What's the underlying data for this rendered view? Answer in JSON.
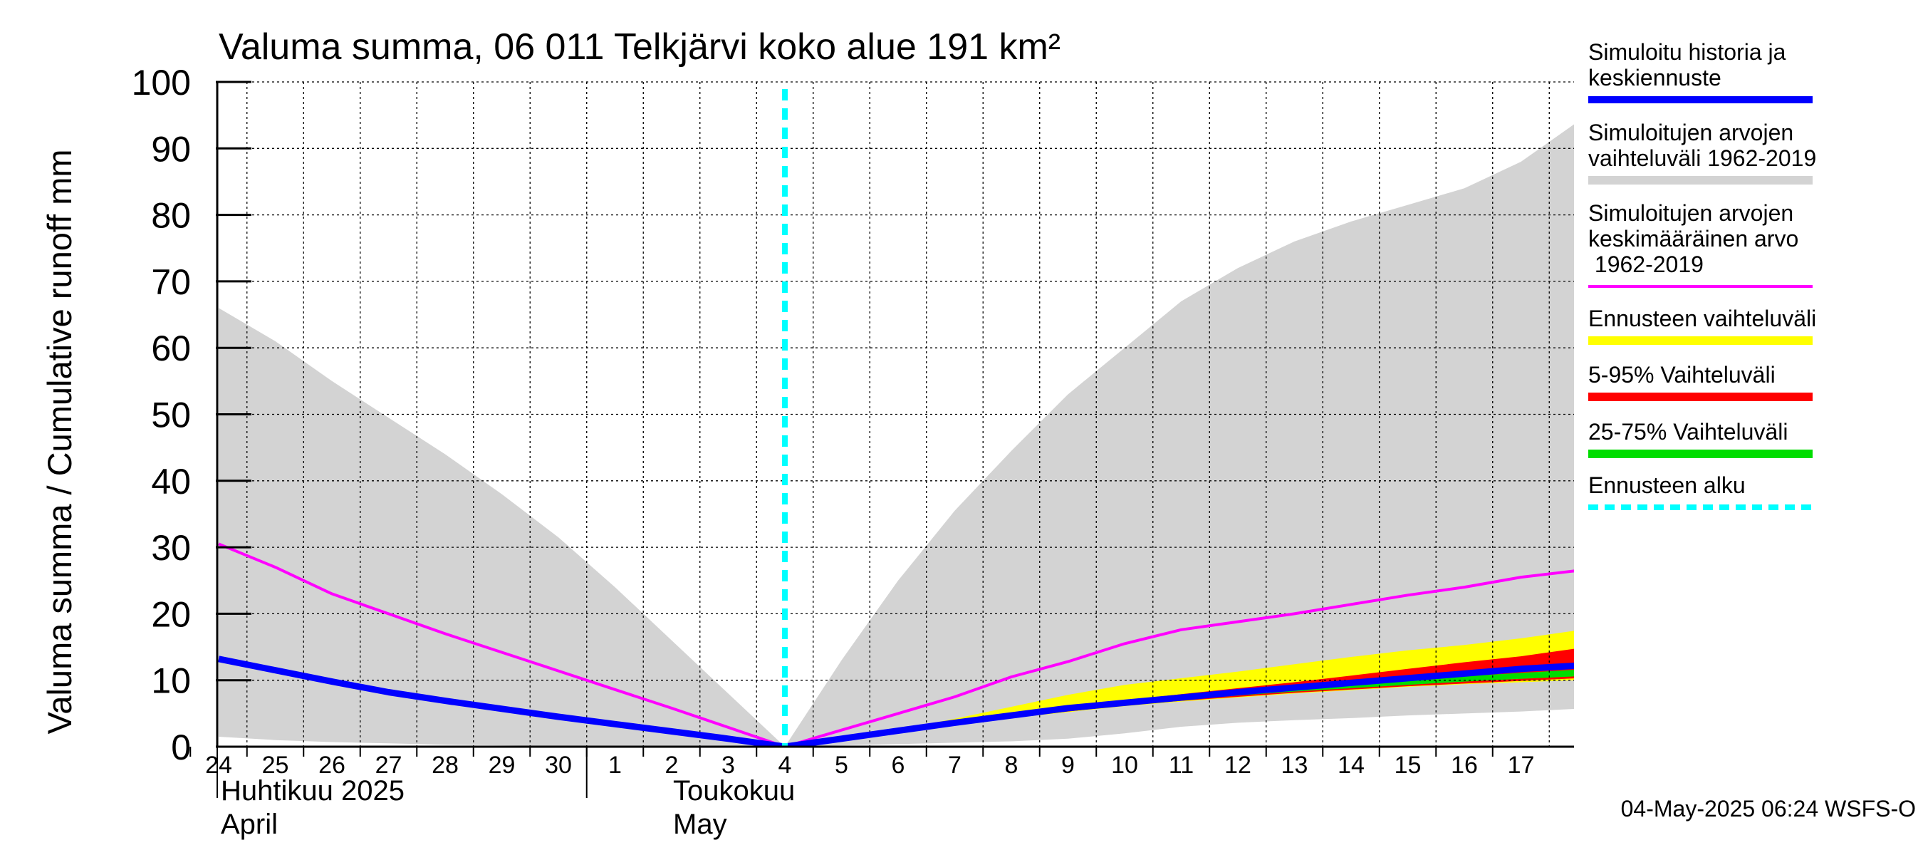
{
  "chart_data": {
    "type": "area",
    "title": "Valuma summa, 06 011 Telkjärvi koko alue 191 km²",
    "ylabel": "Valuma summa / Cumulative runoff    mm",
    "ylim": [
      0,
      100
    ],
    "yticks": [
      "0",
      "10",
      "20",
      "30",
      "40",
      "50",
      "60",
      "70",
      "80",
      "90",
      "100"
    ],
    "x_dates": [
      "2025-04-24",
      "2025-04-25",
      "2025-04-26",
      "2025-04-27",
      "2025-04-28",
      "2025-04-29",
      "2025-04-30",
      "2025-05-01",
      "2025-05-02",
      "2025-05-03",
      "2025-05-04",
      "2025-05-05",
      "2025-05-06",
      "2025-05-07",
      "2025-05-08",
      "2025-05-09",
      "2025-05-10",
      "2025-05-11",
      "2025-05-12",
      "2025-05-13",
      "2025-05-14",
      "2025-05-15",
      "2025-05-16",
      "2025-05-17"
    ],
    "xticks": [
      "24",
      "25",
      "26",
      "27",
      "28",
      "29",
      "30",
      "1",
      "2",
      "3",
      "4",
      "5",
      "6",
      "7",
      "8",
      "9",
      "10",
      "11",
      "12",
      "13",
      "14",
      "15",
      "16",
      "17"
    ],
    "month_labels": [
      {
        "fi": "Huhtikuu  2025",
        "en": "April"
      },
      {
        "fi": "Toukokuu",
        "en": "May"
      }
    ],
    "forecast_start": "2025-05-04",
    "series": [
      {
        "name": "Simuloitujen arvojen vaihteluväli 1962-2019",
        "color": "#d3d3d3",
        "kind": "band",
        "x": [
          "2025-04-24",
          "2025-04-25",
          "2025-04-26",
          "2025-04-27",
          "2025-04-28",
          "2025-04-29",
          "2025-04-30",
          "2025-05-01",
          "2025-05-02",
          "2025-05-03",
          "2025-05-04",
          "2025-05-05",
          "2025-05-06",
          "2025-05-07",
          "2025-05-08",
          "2025-05-09",
          "2025-05-10",
          "2025-05-11",
          "2025-05-12",
          "2025-05-13",
          "2025-05-14",
          "2025-05-15",
          "2025-05-16",
          "2025-05-17",
          "2025-05-18"
        ],
        "upper": [
          66,
          61,
          55,
          49.5,
          44,
          38,
          31.5,
          24,
          16,
          8,
          0,
          13,
          25,
          35.5,
          44.5,
          53,
          60,
          67,
          72,
          76,
          79,
          81.5,
          84,
          88,
          94
        ],
        "lower": [
          1.5,
          1.0,
          0.7,
          0.5,
          0.3,
          0.2,
          0.1,
          0,
          0,
          0,
          0,
          0.2,
          0.4,
          0.6,
          0.8,
          1.2,
          2.0,
          3.0,
          3.6,
          4.0,
          4.3,
          4.7,
          5.0,
          5.3,
          5.7
        ]
      },
      {
        "name": "Ennusteen vaihteluväli",
        "color": "#ffff00",
        "kind": "band",
        "x": [
          "2025-05-04",
          "2025-05-05",
          "2025-05-06",
          "2025-05-07",
          "2025-05-08",
          "2025-05-09",
          "2025-05-10",
          "2025-05-11",
          "2025-05-12",
          "2025-05-13",
          "2025-05-14",
          "2025-05-15",
          "2025-05-16",
          "2025-05-17",
          "2025-05-18"
        ],
        "upper": [
          0,
          1.3,
          2.6,
          4.2,
          6.0,
          7.8,
          9.3,
          10.3,
          11.3,
          12.4,
          13.5,
          14.5,
          15.3,
          16.3,
          17.5
        ],
        "lower": [
          0,
          1.2,
          2.3,
          3.3,
          4.3,
          5.2,
          6.1,
          6.8,
          7.4,
          8.0,
          8.5,
          9.0,
          9.4,
          9.7,
          10.0
        ]
      },
      {
        "name": "5-95% Vaihteluväli",
        "color": "#ff0000",
        "kind": "band",
        "x": [
          "2025-05-04",
          "2025-05-05",
          "2025-05-06",
          "2025-05-07",
          "2025-05-08",
          "2025-05-09",
          "2025-05-10",
          "2025-05-11",
          "2025-05-12",
          "2025-05-13",
          "2025-05-14",
          "2025-05-15",
          "2025-05-16",
          "2025-05-17",
          "2025-05-18"
        ],
        "upper": [
          0,
          1.3,
          2.5,
          3.6,
          4.8,
          6.0,
          7.0,
          7.9,
          8.8,
          9.7,
          10.7,
          11.7,
          12.7,
          13.6,
          14.8
        ],
        "lower": [
          0,
          1.2,
          2.3,
          3.4,
          4.4,
          5.3,
          6.2,
          6.9,
          7.5,
          8.1,
          8.6,
          9.1,
          9.5,
          9.9,
          10.3
        ]
      },
      {
        "name": "25-75% Vaihteluväli",
        "color": "#00dd00",
        "kind": "band",
        "x": [
          "2025-05-04",
          "2025-05-05",
          "2025-05-06",
          "2025-05-07",
          "2025-05-08",
          "2025-05-09",
          "2025-05-10",
          "2025-05-11",
          "2025-05-12",
          "2025-05-13",
          "2025-05-14",
          "2025-05-15",
          "2025-05-16",
          "2025-05-17",
          "2025-05-18"
        ],
        "upper": [
          0,
          1.2,
          2.4,
          3.5,
          4.6,
          5.6,
          6.5,
          7.3,
          8.1,
          8.8,
          9.4,
          10.0,
          10.6,
          11.1,
          11.6
        ],
        "lower": [
          0,
          1.2,
          2.3,
          3.4,
          4.4,
          5.4,
          6.3,
          7.0,
          7.7,
          8.3,
          8.8,
          9.3,
          9.8,
          10.2,
          10.6
        ]
      },
      {
        "name": "Simuloitujen arvojen keskimääräinen arvo 1962-2019",
        "color": "#ff00ff",
        "kind": "line",
        "x": [
          "2025-04-24",
          "2025-04-25",
          "2025-04-26",
          "2025-04-27",
          "2025-04-28",
          "2025-04-29",
          "2025-04-30",
          "2025-05-01",
          "2025-05-02",
          "2025-05-03",
          "2025-05-04",
          "2025-05-05",
          "2025-05-06",
          "2025-05-07",
          "2025-05-08",
          "2025-05-09",
          "2025-05-10",
          "2025-05-11",
          "2025-05-12",
          "2025-05-13",
          "2025-05-14",
          "2025-05-15",
          "2025-05-16",
          "2025-05-17",
          "2025-05-18"
        ],
        "values": [
          30.5,
          27,
          23,
          20,
          17,
          14.2,
          11.4,
          8.6,
          5.8,
          2.9,
          0,
          2.5,
          5.0,
          7.5,
          10.5,
          12.8,
          15.5,
          17.6,
          18.8,
          20,
          21.4,
          22.8,
          24,
          25.5,
          26.5
        ]
      },
      {
        "name": "Simuloitu historia ja keskiennuste",
        "color": "#0000ff",
        "kind": "line",
        "x": [
          "2025-04-24",
          "2025-04-25",
          "2025-04-26",
          "2025-04-27",
          "2025-04-28",
          "2025-04-29",
          "2025-04-30",
          "2025-05-01",
          "2025-05-02",
          "2025-05-03",
          "2025-05-04",
          "2025-05-05",
          "2025-05-06",
          "2025-05-07",
          "2025-05-08",
          "2025-05-09",
          "2025-05-10",
          "2025-05-11",
          "2025-05-12",
          "2025-05-13",
          "2025-05-14",
          "2025-05-15",
          "2025-05-16",
          "2025-05-17",
          "2025-05-18"
        ],
        "values": [
          13.2,
          11.5,
          9.8,
          8.2,
          6.9,
          5.7,
          4.5,
          3.4,
          2.3,
          1.2,
          0,
          1.2,
          2.4,
          3.6,
          4.7,
          5.8,
          6.6,
          7.4,
          8.2,
          8.9,
          9.6,
          10.3,
          11.0,
          11.7,
          12.2
        ]
      }
    ],
    "legend": [
      {
        "label": "Simuloitu historia ja keskiennuste",
        "color": "#0000ff",
        "style": "solid"
      },
      {
        "label": "Simuloitujen arvojen vaihteluväli 1962-2019",
        "color": "#d3d3d3",
        "style": "solid"
      },
      {
        "label": "Simuloitujen arvojen keskimääräinen arvo  1962-2019",
        "color": "#ff00ff",
        "style": "thin"
      },
      {
        "label": "Ennusteen vaihteluväli",
        "color": "#ffff00",
        "style": "solid"
      },
      {
        "label": "5-95% Vaihteluväli",
        "color": "#ff0000",
        "style": "solid"
      },
      {
        "label": "25-75% Vaihteluväli",
        "color": "#00dd00",
        "style": "solid"
      },
      {
        "label": "Ennusteen alku",
        "color": "#00ffff",
        "style": "dashed"
      }
    ],
    "legend_placement": "right",
    "grid": true,
    "footer": "04-May-2025 06:24 WSFS-O"
  }
}
